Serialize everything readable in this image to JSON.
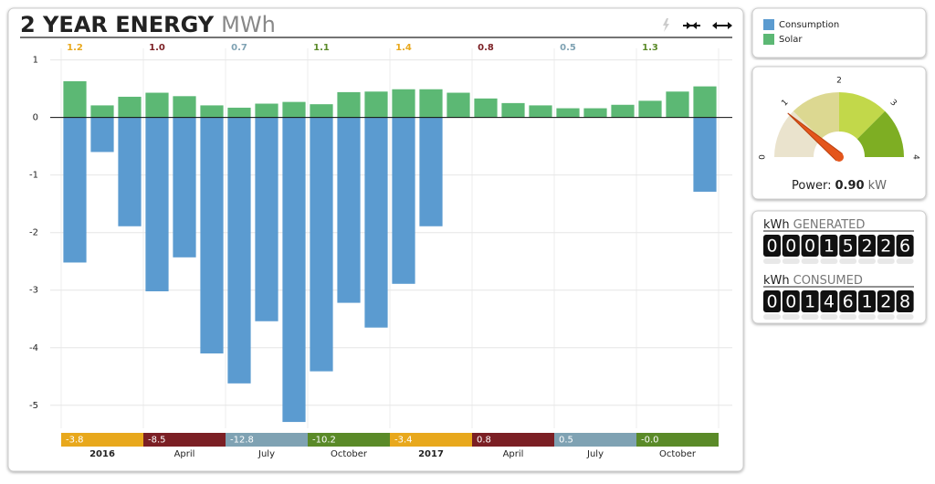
{
  "chart_data": {
    "type": "bar",
    "title": "2 YEAR ENERGY",
    "unit": "MWh",
    "categories": [
      "2016",
      null,
      null,
      "April",
      null,
      null,
      "July",
      null,
      null,
      "October",
      null,
      null,
      "2017",
      null,
      null,
      "April",
      null,
      null,
      "July",
      null,
      null,
      "October",
      null,
      null
    ],
    "series": [
      {
        "name": "Consumption",
        "color": "#5b9bd0",
        "values": [
          -2.52,
          -0.6,
          -1.89,
          -3.02,
          -2.43,
          -4.1,
          -4.62,
          -3.54,
          -5.29,
          -4.41,
          -3.22,
          -3.65,
          -2.89,
          -1.89,
          null,
          null,
          null,
          null,
          null,
          null,
          null,
          null,
          null,
          -1.29
        ]
      },
      {
        "name": "Solar",
        "color": "#5cb874",
        "values": [
          0.63,
          0.21,
          0.36,
          0.43,
          0.37,
          0.21,
          0.17,
          0.24,
          0.27,
          0.23,
          0.44,
          0.45,
          0.49,
          0.49,
          0.43,
          0.33,
          0.25,
          0.21,
          0.16,
          0.16,
          0.22,
          0.29,
          0.45,
          0.54
        ]
      }
    ],
    "ylim": [
      -5.4,
      1.2
    ],
    "yticks": [
      1,
      0,
      -1,
      -2,
      -3,
      -4,
      -5
    ],
    "grid": true,
    "quarter_colors": [
      "#e8a81c",
      "#7b1f24",
      "#7fa2b3",
      "#5a8a28"
    ],
    "quarter_solar": {
      "values": [
        1.2,
        1.0,
        0.7,
        1.1,
        1.4,
        0.8,
        0.5,
        1.3
      ],
      "value_labels": [
        "1.2",
        "1.0",
        "0.7",
        "1.1",
        "1.4",
        "0.8",
        "0.5",
        "1.3"
      ]
    },
    "quarter_net": {
      "values": [
        -3.8,
        -8.5,
        -12.8,
        -10.2,
        -3.4,
        0.8,
        0.5,
        0
      ],
      "value_labels": [
        "-3.8",
        "-8.5",
        "-12.8",
        "-10.2",
        "-3.4",
        "0.8",
        "0.5",
        "-0.0"
      ]
    }
  },
  "gauge": {
    "ticks": [
      0,
      1,
      2,
      3,
      4
    ],
    "band_colors": [
      "#eae3cd",
      "#dcd891",
      "#c2d84a",
      "#7eae23"
    ],
    "value": 0.9,
    "value_label": "0.90",
    "label": "Power:",
    "unit": "kW"
  },
  "counters": [
    {
      "unit": "kWh",
      "label": "GENERATED",
      "digits": [
        0,
        0,
        0,
        1,
        5,
        2,
        2,
        6
      ]
    },
    {
      "unit": "kWh",
      "label": "CONSUMED",
      "digits": [
        0,
        0,
        1,
        4,
        6,
        1,
        2,
        8
      ]
    }
  ]
}
